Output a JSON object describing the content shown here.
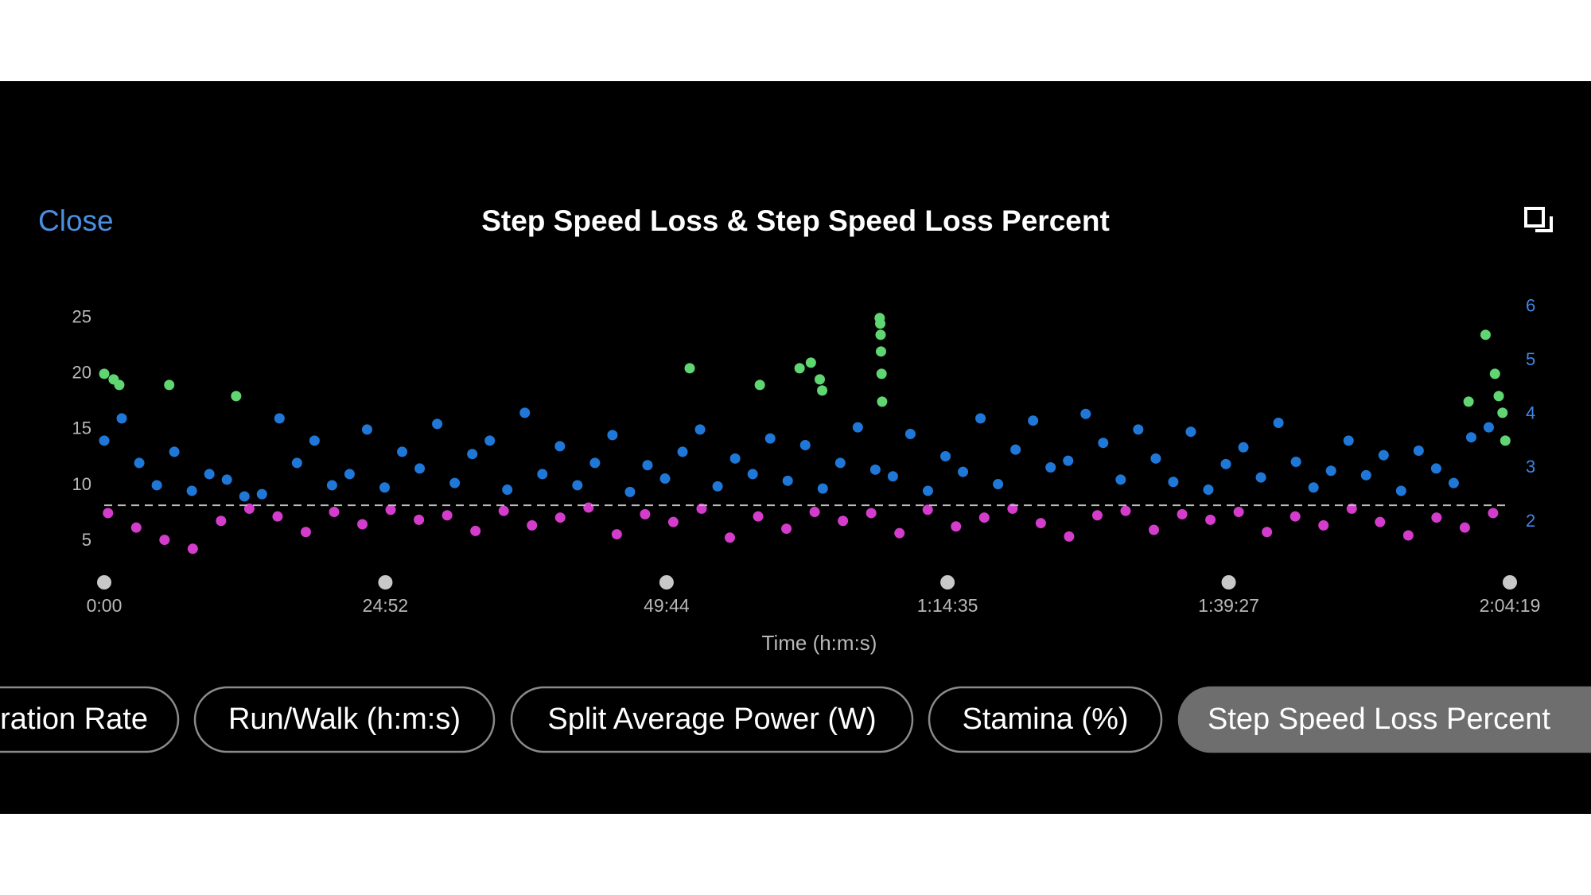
{
  "header": {
    "close": "Close",
    "title": "Step Speed Loss & Step Speed Loss Percent"
  },
  "chart_data": {
    "type": "scatter",
    "xlabel": "Time (h:m:s)",
    "xlim": [
      0,
      7459
    ],
    "xticks": [
      {
        "value": 0,
        "label": "0:00"
      },
      {
        "value": 1492,
        "label": "24:52"
      },
      {
        "value": 2984,
        "label": "49:44"
      },
      {
        "value": 4475,
        "label": "1:14:35"
      },
      {
        "value": 5967,
        "label": "1:39:27"
      },
      {
        "value": 7459,
        "label": "2:04:19"
      }
    ],
    "ylim": [
      3,
      26.2
    ],
    "yticks": [
      5,
      10,
      15,
      20,
      25
    ],
    "y2lim": [
      1.23,
      6.04
    ],
    "y2ticks": [
      2,
      3,
      4,
      5,
      6
    ],
    "y2_color": "#3f86e4",
    "threshold": 8.2,
    "series": [
      {
        "color": "#1f78d8",
        "x": [
          0,
          93,
          186,
          279,
          372,
          465,
          558,
          651,
          744,
          837,
          930,
          1023,
          1116,
          1209,
          1302,
          1395,
          1488,
          1581,
          1674,
          1767,
          1860,
          1953,
          2046,
          2139,
          2232,
          2325,
          2418,
          2511,
          2604,
          2697,
          2790,
          2883,
          2976,
          3069,
          3162,
          3255,
          3348,
          3441,
          3534,
          3627,
          3720,
          3813,
          3906,
          3999,
          4092,
          4185,
          4278,
          4371,
          4464,
          4557,
          4650,
          4743,
          4836,
          4929,
          5022,
          5115,
          5208,
          5301,
          5394,
          5487,
          5580,
          5673,
          5766,
          5859,
          5952,
          6045,
          6138,
          6231,
          6324,
          6417,
          6510,
          6603,
          6696,
          6789,
          6882,
          6975,
          7068,
          7161,
          7254,
          7347
        ],
        "values": [
          14,
          16,
          12,
          10,
          13,
          9.5,
          11,
          10.5,
          9,
          9.2,
          16,
          12,
          14,
          10,
          11,
          15,
          9.8,
          13,
          11.5,
          15.5,
          10.2,
          12.8,
          14,
          9.6,
          16.5,
          11,
          13.5,
          10,
          12,
          14.5,
          9.4,
          11.8,
          10.6,
          13,
          15,
          9.9,
          12.4,
          11,
          14.2,
          10.4,
          13.6,
          9.7,
          12,
          15.2,
          11.4,
          10.8,
          14.6,
          9.5,
          12.6,
          11.2,
          16,
          10.1,
          13.2,
          15.8,
          11.6,
          12.2,
          16.4,
          13.8,
          10.5,
          15,
          12.4,
          10.3,
          14.8,
          9.6,
          11.9,
          13.4,
          10.7,
          15.6,
          12.1,
          9.8,
          11.3,
          14,
          10.9,
          12.7,
          9.5,
          13.1,
          11.5,
          10.2,
          14.3,
          15.2
        ]
      },
      {
        "color": "#d43ccb",
        "x": [
          20,
          170,
          320,
          470,
          620,
          770,
          920,
          1070,
          1220,
          1370,
          1520,
          1670,
          1820,
          1970,
          2120,
          2270,
          2420,
          2570,
          2720,
          2870,
          3020,
          3170,
          3320,
          3470,
          3620,
          3770,
          3920,
          4070,
          4220,
          4370,
          4520,
          4670,
          4820,
          4970,
          5120,
          5270,
          5420,
          5570,
          5720,
          5870,
          6020,
          6170,
          6320,
          6470,
          6620,
          6770,
          6920,
          7070,
          7220,
          7370
        ],
        "values": [
          7.5,
          6.2,
          5.1,
          4.3,
          6.8,
          7.9,
          7.2,
          5.8,
          7.6,
          6.5,
          7.8,
          6.9,
          7.3,
          5.9,
          7.7,
          6.4,
          7.1,
          8,
          5.6,
          7.4,
          6.7,
          7.9,
          5.3,
          7.2,
          6.1,
          7.6,
          6.8,
          7.5,
          5.7,
          7.8,
          6.3,
          7.1,
          7.9,
          6.6,
          5.4,
          7.3,
          7.7,
          6,
          7.4,
          6.9,
          7.6,
          5.8,
          7.2,
          6.4,
          7.9,
          6.7,
          5.5,
          7.1,
          6.2,
          7.5
        ]
      },
      {
        "color": "#5fd672",
        "x": [
          0,
          50,
          80,
          345,
          700,
          3107,
          3479,
          3690,
          3750,
          3797,
          3810,
          4115,
          4118,
          4120,
          4122,
          4125,
          4128,
          7240,
          7330,
          7380,
          7400,
          7420,
          7435
        ],
        "values": [
          20,
          19.5,
          19,
          19,
          18,
          20.5,
          19,
          20.5,
          21,
          19.5,
          18.5,
          25,
          24.5,
          23.5,
          22,
          20,
          17.5,
          17.5,
          23.5,
          20,
          18,
          16.5,
          14
        ]
      }
    ]
  },
  "tabs": [
    "Respiration Rate",
    "Run/Walk (h:m:s)",
    "Split Average Power (W)",
    "Stamina (%)",
    "Step Speed Loss Percent"
  ],
  "selected_tab": 4
}
